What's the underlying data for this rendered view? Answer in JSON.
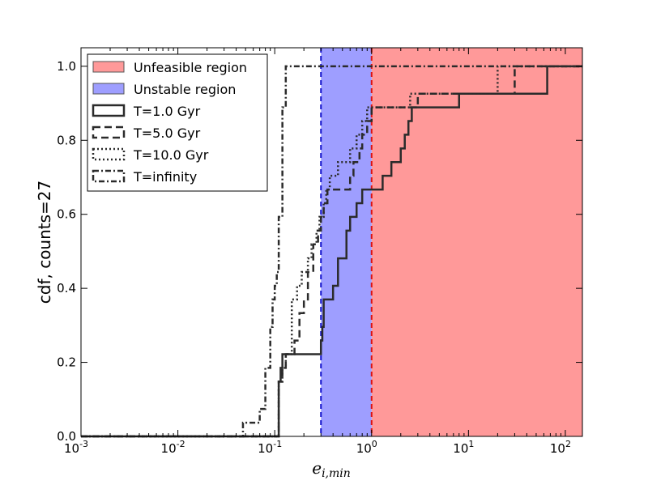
{
  "chart_data": {
    "type": "line",
    "step": true,
    "xscale": "log",
    "xlim": [
      0.001,
      150
    ],
    "ylim": [
      0.0,
      1.05
    ],
    "ylabel": "cdf, counts=27",
    "xlabel": {
      "base": "e",
      "subscript": "i,min"
    },
    "x_ticks": [
      {
        "value": 0.001,
        "base": "10",
        "exp": "-3"
      },
      {
        "value": 0.01,
        "base": "10",
        "exp": "-2"
      },
      {
        "value": 0.1,
        "base": "10",
        "exp": "-1"
      },
      {
        "value": 1,
        "base": "10",
        "exp": "0"
      },
      {
        "value": 10,
        "base": "10",
        "exp": "1"
      },
      {
        "value": 100,
        "base": "10",
        "exp": "2"
      }
    ],
    "y_ticks": [
      {
        "value": 0.0,
        "label": "0.0"
      },
      {
        "value": 0.2,
        "label": "0.2"
      },
      {
        "value": 0.4,
        "label": "0.4"
      },
      {
        "value": 0.6,
        "label": "0.6"
      },
      {
        "value": 0.8,
        "label": "0.8"
      },
      {
        "value": 1.0,
        "label": "1.0"
      }
    ],
    "regions": [
      {
        "name": "Unfeasible region",
        "x_from": 1.0,
        "x_to": 150,
        "fill": "#ff9999",
        "edge_line": {
          "x": 1.0,
          "color": "#dd1111"
        }
      },
      {
        "name": "Unstable region",
        "x_from": 0.3,
        "x_to": 1.0,
        "fill": "#9e9eff",
        "edge_line": {
          "x": 0.3,
          "color": "#1515cc"
        }
      }
    ],
    "series": [
      {
        "name": "T=1.0 Gyr",
        "style": "solid",
        "x": [
          0.001,
          0.11,
          0.115,
          0.12,
          0.125,
          0.3,
          0.31,
          0.32,
          0.4,
          0.45,
          0.55,
          0.6,
          0.7,
          0.8,
          0.9,
          1.1,
          1.3,
          1.6,
          2.0,
          2.2,
          2.4,
          2.6,
          4.0,
          8.0,
          10.0,
          25.0,
          65.0,
          150
        ],
        "y": [
          0.0,
          0.148,
          0.185,
          0.222,
          0.222,
          0.259,
          0.296,
          0.37,
          0.407,
          0.481,
          0.556,
          0.593,
          0.63,
          0.667,
          0.667,
          0.667,
          0.704,
          0.741,
          0.778,
          0.815,
          0.852,
          0.889,
          0.889,
          0.926,
          0.926,
          0.926,
          1.0,
          1.0
        ]
      },
      {
        "name": "T=5.0 Gyr",
        "style": "dashed",
        "x": [
          0.001,
          0.11,
          0.12,
          0.13,
          0.16,
          0.18,
          0.2,
          0.22,
          0.25,
          0.28,
          0.3,
          0.32,
          0.35,
          0.6,
          0.65,
          0.75,
          0.8,
          0.9,
          1.0,
          1.05,
          1.15,
          1.3,
          2.5,
          3.0,
          30.0,
          150
        ],
        "y": [
          0.0,
          0.148,
          0.185,
          0.222,
          0.259,
          0.333,
          0.37,
          0.444,
          0.519,
          0.556,
          0.593,
          0.63,
          0.667,
          0.704,
          0.741,
          0.778,
          0.815,
          0.852,
          0.889,
          0.889,
          0.889,
          0.889,
          0.889,
          0.926,
          1.0,
          1.0
        ]
      },
      {
        "name": "T=10.0 Gyr",
        "style": "dotted",
        "x": [
          0.001,
          0.11,
          0.12,
          0.13,
          0.15,
          0.17,
          0.19,
          0.22,
          0.24,
          0.27,
          0.29,
          0.32,
          0.34,
          0.37,
          0.45,
          0.6,
          0.7,
          0.8,
          0.9,
          1.0,
          1.1,
          2.5,
          20.0,
          150
        ],
        "y": [
          0.0,
          0.148,
          0.185,
          0.222,
          0.37,
          0.407,
          0.444,
          0.481,
          0.519,
          0.556,
          0.593,
          0.63,
          0.667,
          0.704,
          0.741,
          0.778,
          0.815,
          0.852,
          0.889,
          0.889,
          0.889,
          0.926,
          1.0,
          1.0
        ]
      },
      {
        "name": "T=infinity",
        "style": "dashdot",
        "x": [
          0.001,
          0.047,
          0.07,
          0.08,
          0.09,
          0.095,
          0.1,
          0.105,
          0.11,
          0.12,
          0.13,
          150
        ],
        "y": [
          0.0,
          0.037,
          0.074,
          0.185,
          0.296,
          0.37,
          0.407,
          0.444,
          0.593,
          0.889,
          1.0,
          1.0
        ]
      }
    ],
    "legend": {
      "placement": "top-left"
    },
    "grid": false
  }
}
